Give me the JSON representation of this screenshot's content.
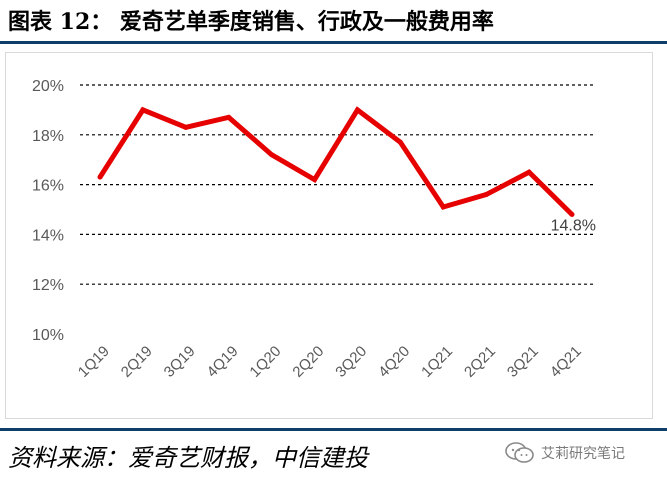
{
  "figure": {
    "title": "图表 12：   爱奇艺单季度销售、行政及一般费用率",
    "source": "资料来源：爱奇艺财报，中信建投",
    "watermark": "艾莉研究笔记"
  },
  "colors": {
    "line": "#e60000",
    "rule": "#0e3f6b",
    "grid": "#000000",
    "text": "#595959"
  },
  "chart_data": {
    "type": "line",
    "categories": [
      "1Q19",
      "2Q19",
      "3Q19",
      "4Q19",
      "1Q20",
      "2Q20",
      "3Q20",
      "4Q20",
      "1Q21",
      "2Q21",
      "3Q21",
      "4Q21"
    ],
    "series": [
      {
        "values": [
          16.3,
          19.0,
          18.3,
          18.7,
          17.2,
          16.2,
          19.0,
          17.7,
          15.1,
          15.6,
          16.5,
          14.8
        ]
      }
    ],
    "yticks": [
      "10%",
      "12%",
      "14%",
      "16%",
      "18%",
      "20%"
    ],
    "ylim": [
      10,
      20
    ],
    "grid": true,
    "grid_style": "dashed",
    "data_labels": [
      {
        "index": 11,
        "text": "14.8%"
      }
    ]
  }
}
